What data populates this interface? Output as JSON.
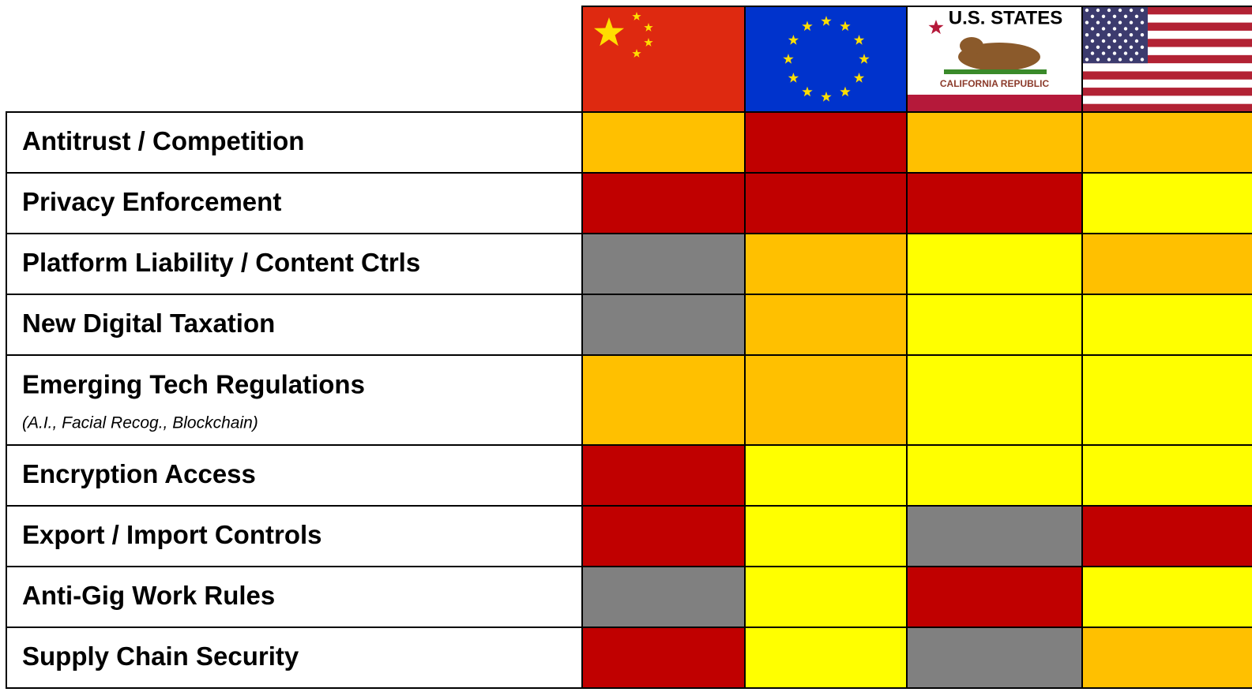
{
  "header": {
    "us_states_label": "U.S. STATES",
    "california_label": "CALIFORNIA REPUBLIC"
  },
  "table": {
    "rows": [
      {
        "label": "Antitrust / Competition",
        "cells": [
          "#ffc000",
          "#c00000",
          "#ffc000",
          "#ffc000"
        ]
      },
      {
        "label": "Privacy Enforcement",
        "cells": [
          "#c00000",
          "#c00000",
          "#c00000",
          "#ffff00"
        ]
      },
      {
        "label": "Platform Liability / Content Ctrls",
        "cells": [
          "#808080",
          "#ffc000",
          "#ffff00",
          "#ffc000"
        ]
      },
      {
        "label": "New Digital Taxation",
        "cells": [
          "#808080",
          "#ffc000",
          "#ffff00",
          "#ffff00"
        ]
      },
      {
        "label": "Emerging Tech Regulations",
        "note": "(A.I., Facial Recog., Blockchain)",
        "cells": [
          "#ffc000",
          "#ffc000",
          "#ffff00",
          "#ffff00"
        ]
      },
      {
        "label": "Encryption Access",
        "cells": [
          "#c00000",
          "#ffff00",
          "#ffff00",
          "#ffff00"
        ]
      },
      {
        "label": "Export / Import Controls",
        "cells": [
          "#c00000",
          "#ffff00",
          "#808080",
          "#c00000"
        ]
      },
      {
        "label": "Anti-Gig Work Rules",
        "cells": [
          "#808080",
          "#ffff00",
          "#c00000",
          "#ffff00"
        ]
      },
      {
        "label": "Supply Chain Security",
        "cells": [
          "#c00000",
          "#ffff00",
          "#808080",
          "#ffc000"
        ]
      }
    ]
  }
}
